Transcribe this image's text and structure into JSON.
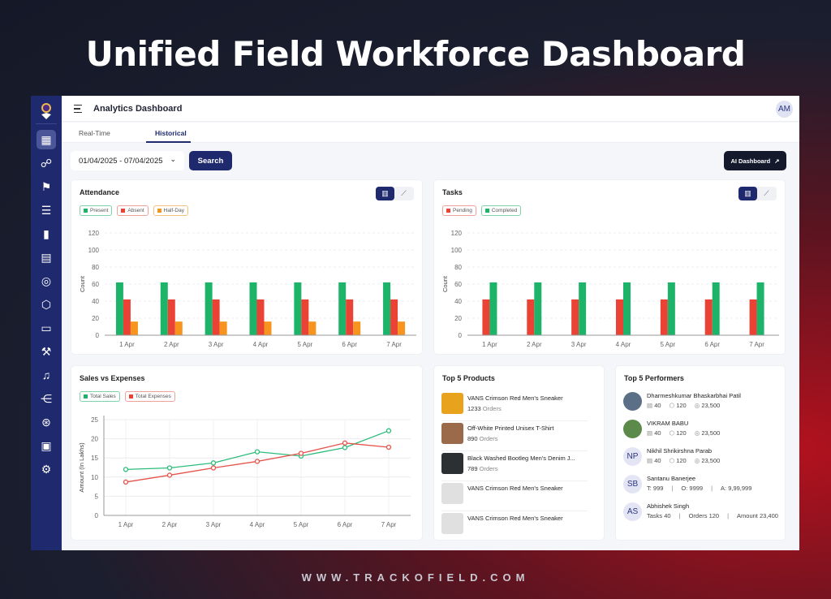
{
  "hero_title": "Unified Field Workforce Dashboard",
  "footer_url": "WWW.TRACKOFIELD.COM",
  "header": {
    "title": "Analytics Dashboard",
    "avatar": "AM"
  },
  "sidebar": {
    "items": [
      {
        "icon": "dashboard-icon",
        "glyph": "▦",
        "active": true
      },
      {
        "icon": "users-icon",
        "glyph": "☍"
      },
      {
        "icon": "field-visit-icon",
        "glyph": "⚑"
      },
      {
        "icon": "tasks-icon",
        "glyph": "☰"
      },
      {
        "icon": "reports-icon",
        "glyph": "▮"
      },
      {
        "icon": "calendar-icon",
        "glyph": "▤"
      },
      {
        "icon": "target-icon",
        "glyph": "◎"
      },
      {
        "icon": "package-icon",
        "glyph": "⬡"
      },
      {
        "icon": "message-icon",
        "glyph": "▭"
      },
      {
        "icon": "gavel-icon",
        "glyph": "⚒"
      },
      {
        "icon": "bell-icon",
        "glyph": "♫"
      },
      {
        "icon": "hierarchy-icon",
        "glyph": "⋲"
      },
      {
        "icon": "user-settings-icon",
        "glyph": "⊛"
      },
      {
        "icon": "cash-icon",
        "glyph": "▣"
      },
      {
        "icon": "settings-icon",
        "glyph": "⚙"
      }
    ]
  },
  "tabs": [
    {
      "label": "Real-Time"
    },
    {
      "label": "Historical",
      "active": true
    }
  ],
  "filters": {
    "date_range": "01/04/2025 - 07/04/2025",
    "search_label": "Search",
    "ai_label": "AI Dashboard"
  },
  "colors": {
    "green": "#1db46a",
    "red": "#ea4335",
    "orange": "#f7941d",
    "navy": "#1f2a6e"
  },
  "attendance": {
    "title": "Attendance",
    "legend": [
      "Present",
      "Absent",
      "Half-Day"
    ]
  },
  "tasks": {
    "title": "Tasks",
    "legend": [
      "Pending",
      "Completed"
    ]
  },
  "sales": {
    "title": "Sales vs Expenses",
    "legend": [
      "Total Sales",
      "Total Expenses"
    ]
  },
  "chart_data": [
    {
      "type": "bar",
      "title": "Attendance",
      "ylabel": "Count",
      "ylim": [
        0,
        120
      ],
      "yticks": [
        0,
        20,
        40,
        60,
        80,
        100,
        120
      ],
      "grid": true,
      "categories": [
        "1 Apr",
        "2 Apr",
        "3 Apr",
        "4 Apr",
        "5 Apr",
        "6 Apr",
        "7 Apr"
      ],
      "series": [
        {
          "name": "Present",
          "color": "#1db46a",
          "values": [
            62,
            62,
            62,
            62,
            62,
            62,
            62
          ]
        },
        {
          "name": "Absent",
          "color": "#ea4335",
          "values": [
            42,
            42,
            42,
            42,
            42,
            42,
            42
          ]
        },
        {
          "name": "Half-Day",
          "color": "#f7941d",
          "values": [
            16,
            16,
            16,
            16,
            16,
            16,
            16
          ]
        }
      ]
    },
    {
      "type": "bar",
      "title": "Tasks",
      "ylabel": "Count",
      "ylim": [
        0,
        120
      ],
      "yticks": [
        0,
        20,
        40,
        60,
        80,
        100,
        120
      ],
      "grid": true,
      "categories": [
        "1 Apr",
        "2 Apr",
        "3 Apr",
        "4 Apr",
        "5 Apr",
        "6 Apr",
        "7 Apr"
      ],
      "series": [
        {
          "name": "Pending",
          "color": "#ea4335",
          "values": [
            42,
            42,
            42,
            42,
            42,
            42,
            42
          ]
        },
        {
          "name": "Completed",
          "color": "#1db46a",
          "values": [
            62,
            62,
            62,
            62,
            62,
            62,
            62
          ]
        }
      ]
    },
    {
      "type": "line",
      "title": "Sales vs Expenses",
      "ylabel": "Amount (In Lakhs)",
      "ylim": [
        0,
        25
      ],
      "yticks": [
        0,
        5,
        10,
        15,
        20,
        25
      ],
      "grid": true,
      "categories": [
        "1 Apr",
        "2 Apr",
        "3 Apr",
        "4 Apr",
        "5 Apr",
        "6 Apr",
        "7 Apr"
      ],
      "series": [
        {
          "name": "Total Sales",
          "color": "#2dbb7a",
          "values": [
            12,
            12.4,
            13.7,
            16.6,
            15.5,
            17.7,
            22.1
          ]
        },
        {
          "name": "Total Expenses",
          "color": "#e5534b",
          "values": [
            8.7,
            10.5,
            12.4,
            14.1,
            16.2,
            18.9,
            17.8
          ]
        }
      ]
    }
  ],
  "products": {
    "title": "Top 5 Products",
    "orders_suffix": "Orders",
    "items": [
      {
        "name": "VANS Crimson Red Men's Sneaker",
        "orders": "1233",
        "thumb": "#e8a21c"
      },
      {
        "name": "Off-White Printed Unisex T-Shirt",
        "orders": "890",
        "thumb": "#9a6a4a"
      },
      {
        "name": "Black Washed Bootleg Men's Denim J...",
        "orders": "789",
        "thumb": "#2d3033"
      },
      {
        "name": "VANS Crimson Red Men's Sneaker"
      },
      {
        "name": "VANS Crimson Red Men's Sneaker"
      }
    ]
  },
  "performers": {
    "title": "Top 5 Performers",
    "items": [
      {
        "name": "Dharmeshkumar Bhaskarbhai Patil",
        "photo": true,
        "tasks": "40",
        "orders": "120",
        "amount": "23,500"
      },
      {
        "name": "VIKRAM BABU",
        "photo": true,
        "tasks": "40",
        "orders": "120",
        "amount": "23,500"
      },
      {
        "name": "Nikhil Shrikirshna Parab",
        "initials": "NP",
        "tasks": "40",
        "orders": "120",
        "amount": "23,500"
      },
      {
        "name": "Santanu Banerjee",
        "initials": "SB",
        "stats_text": [
          "T: 999",
          "|",
          "O: 9999",
          "|",
          "A: 9,99,999"
        ]
      },
      {
        "name": "Abhishek Singh",
        "initials": "AS",
        "stats_text": [
          "Tasks 40",
          "|",
          "Orders 120",
          "|",
          "Amount 23,400"
        ]
      }
    ]
  }
}
